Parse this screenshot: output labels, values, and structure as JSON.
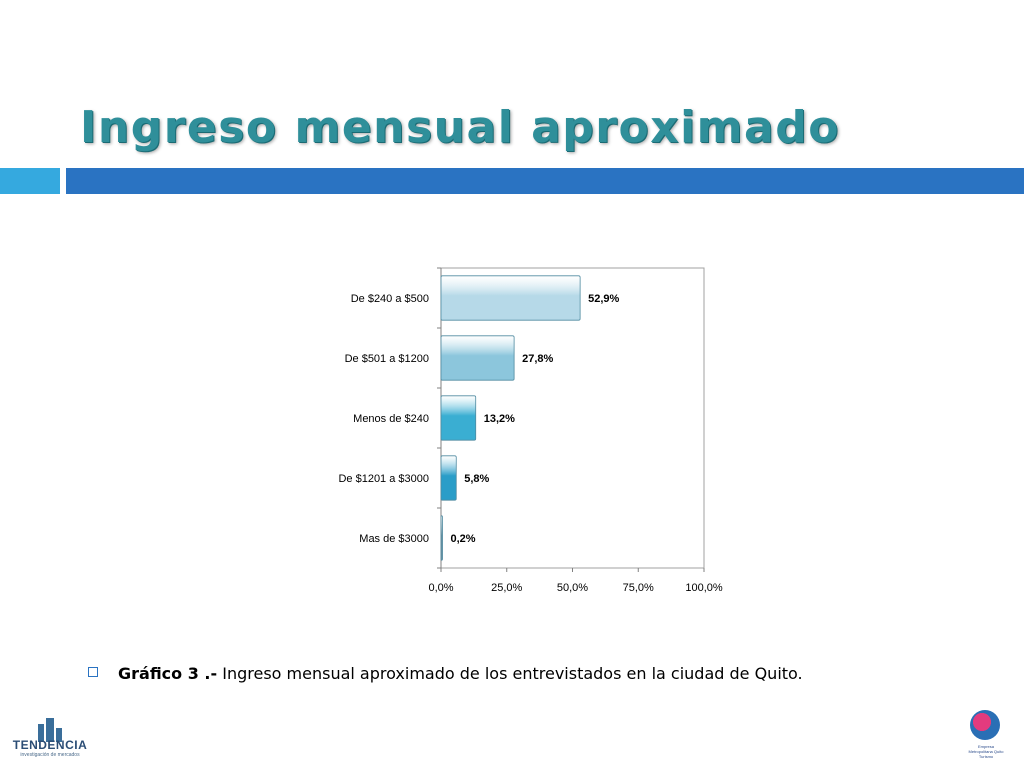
{
  "slide": {
    "title": "Ingreso mensual aproximado"
  },
  "chart_data": {
    "type": "bar",
    "orientation": "horizontal",
    "categories": [
      "De $240  a $500",
      "De $501  a $1200",
      "Menos de  $240",
      "De $1201  a $3000",
      "Mas de  $3000"
    ],
    "values": [
      52.9,
      27.8,
      13.2,
      5.8,
      0.2
    ],
    "value_labels": [
      "52,9%",
      "27,8%",
      "13,2%",
      "5,8%",
      "0,2%"
    ],
    "xlim": [
      0,
      100
    ],
    "xticks": [
      0,
      25,
      50,
      75,
      100
    ],
    "xtick_labels": [
      "0,0%",
      "25,0%",
      "50,0%",
      "75,0%",
      "100,0%"
    ],
    "grid": false,
    "legend": "none",
    "bar_colors": [
      "#b6d9e8",
      "#8cc6dc",
      "#3aaed2",
      "#2a9dc8",
      "#6d8fa0"
    ]
  },
  "caption": {
    "lead": "Gráfico 3 .-",
    "text": " Ingreso mensual aproximado de los entrevistados en la ciudad de Quito."
  },
  "logos": {
    "left_name": "TENDENCIA",
    "left_sub": "investigación de mercados",
    "right_text": "Empresa Metropolitana Quito Turismo"
  },
  "colors": {
    "title": "#2f8f9a",
    "accent_light": "#35a9df",
    "accent_dark": "#2a73c2"
  }
}
